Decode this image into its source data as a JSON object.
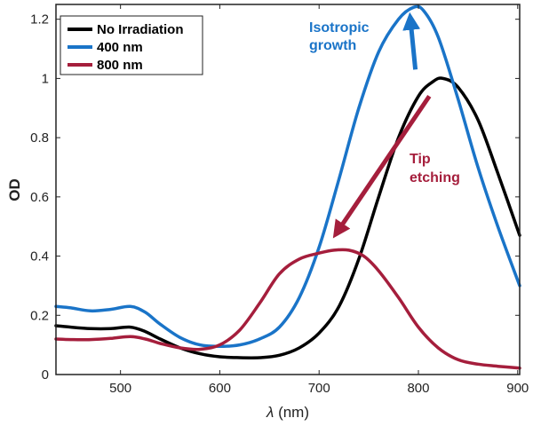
{
  "chart_data": {
    "type": "line",
    "xlabel_symbol": "λ",
    "xlabel_unit": " (nm)",
    "ylabel": "OD",
    "xlim": [
      435,
      902
    ],
    "ylim": [
      0,
      1.25
    ],
    "xticks": [
      500,
      600,
      700,
      800,
      900
    ],
    "yticks": [
      0,
      0.2,
      0.4,
      0.6,
      0.8,
      1,
      1.2
    ],
    "ytick_labels": [
      "0",
      "0.2",
      "0.4",
      "0.6",
      "0.8",
      "1",
      "1.2"
    ],
    "grid": false,
    "legend_position": "top-left",
    "series": [
      {
        "name": "No Irradiation",
        "color": "#000000",
        "x": [
          435,
          450,
          470,
          490,
          510,
          525,
          540,
          560,
          580,
          600,
          620,
          640,
          660,
          680,
          700,
          720,
          740,
          760,
          780,
          800,
          815,
          825,
          840,
          860,
          880,
          902
        ],
        "y": [
          0.165,
          0.16,
          0.155,
          0.155,
          0.16,
          0.145,
          0.12,
          0.09,
          0.07,
          0.06,
          0.057,
          0.057,
          0.065,
          0.09,
          0.14,
          0.23,
          0.39,
          0.6,
          0.8,
          0.94,
          0.99,
          1.0,
          0.97,
          0.86,
          0.68,
          0.47
        ]
      },
      {
        "name": "400 nm",
        "color": "#1a74c8",
        "x": [
          435,
          450,
          470,
          490,
          510,
          525,
          540,
          560,
          580,
          600,
          620,
          640,
          660,
          680,
          700,
          720,
          740,
          760,
          780,
          795,
          805,
          820,
          840,
          860,
          880,
          902
        ],
        "y": [
          0.23,
          0.225,
          0.215,
          0.22,
          0.23,
          0.21,
          0.17,
          0.125,
          0.1,
          0.095,
          0.1,
          0.12,
          0.16,
          0.26,
          0.43,
          0.66,
          0.9,
          1.09,
          1.2,
          1.24,
          1.23,
          1.14,
          0.93,
          0.7,
          0.5,
          0.3
        ]
      },
      {
        "name": "800 nm",
        "color": "#a51e3c",
        "x": [
          435,
          450,
          470,
          490,
          510,
          525,
          540,
          560,
          580,
          600,
          620,
          640,
          660,
          680,
          700,
          715,
          730,
          745,
          760,
          780,
          800,
          820,
          840,
          860,
          880,
          902
        ],
        "y": [
          0.12,
          0.118,
          0.118,
          0.122,
          0.128,
          0.12,
          0.105,
          0.09,
          0.085,
          0.1,
          0.15,
          0.24,
          0.34,
          0.39,
          0.41,
          0.42,
          0.42,
          0.4,
          0.35,
          0.26,
          0.16,
          0.09,
          0.05,
          0.035,
          0.028,
          0.022
        ]
      }
    ],
    "annotations": [
      {
        "lines": [
          "Isotropic",
          "growth"
        ],
        "color": "#1a74c8"
      },
      {
        "lines": [
          "Tip",
          "etching"
        ],
        "color": "#a51e3c"
      }
    ],
    "arrows": [
      {
        "from": [
          797,
          1.03
        ],
        "to": [
          792,
          1.2
        ],
        "color": "#1a74c8"
      },
      {
        "from": [
          811,
          0.94
        ],
        "to": [
          718,
          0.48
        ],
        "color": "#a51e3c"
      }
    ]
  }
}
